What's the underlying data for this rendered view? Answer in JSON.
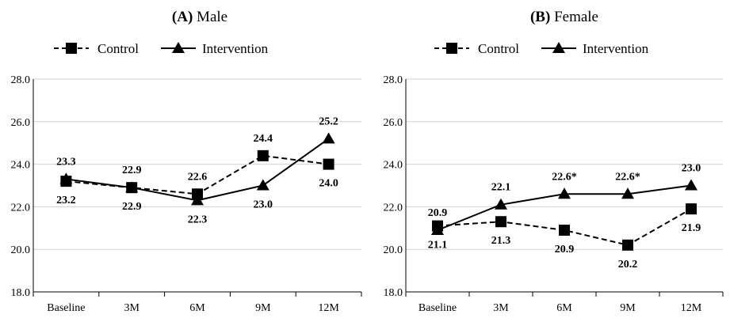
{
  "chart_data": [
    {
      "type": "line",
      "panel_letter": "(A)",
      "title": "Male",
      "categories": [
        "Baseline",
        "3M",
        "6M",
        "9M",
        "12M"
      ],
      "ylim": [
        18.0,
        28.0
      ],
      "yticks": [
        "18.0",
        "20.0",
        "22.0",
        "24.0",
        "26.0",
        "28.0"
      ],
      "grid": true,
      "legend_position": "top",
      "series": [
        {
          "name": "Control",
          "marker": "square",
          "line": "dashed",
          "values": [
            23.2,
            22.9,
            22.6,
            24.4,
            24.0
          ],
          "labels": [
            "23.2",
            "22.9",
            "22.6",
            "24.4",
            "24.0"
          ]
        },
        {
          "name": "Intervention",
          "marker": "triangle",
          "line": "solid",
          "values": [
            23.3,
            22.9,
            22.3,
            23.0,
            25.2
          ],
          "labels": [
            "23.3",
            "22.9",
            "22.3",
            "23.0",
            "25.2"
          ]
        }
      ]
    },
    {
      "type": "line",
      "panel_letter": "(B)",
      "title": "Female",
      "categories": [
        "Baseline",
        "3M",
        "6M",
        "9M",
        "12M"
      ],
      "ylim": [
        18.0,
        28.0
      ],
      "yticks": [
        "18.0",
        "20.0",
        "22.0",
        "24.0",
        "26.0",
        "28.0"
      ],
      "grid": true,
      "legend_position": "top",
      "series": [
        {
          "name": "Control",
          "marker": "square",
          "line": "dashed",
          "values": [
            21.1,
            21.3,
            20.9,
            20.2,
            21.9
          ],
          "labels": [
            "21.1",
            "21.3",
            "20.9",
            "20.2",
            "21.9"
          ]
        },
        {
          "name": "Intervention",
          "marker": "triangle",
          "line": "solid",
          "values": [
            20.9,
            22.1,
            22.6,
            22.6,
            23.0
          ],
          "labels": [
            "20.9",
            "22.1",
            "22.6*",
            "22.6*",
            "23.0"
          ]
        }
      ]
    }
  ]
}
